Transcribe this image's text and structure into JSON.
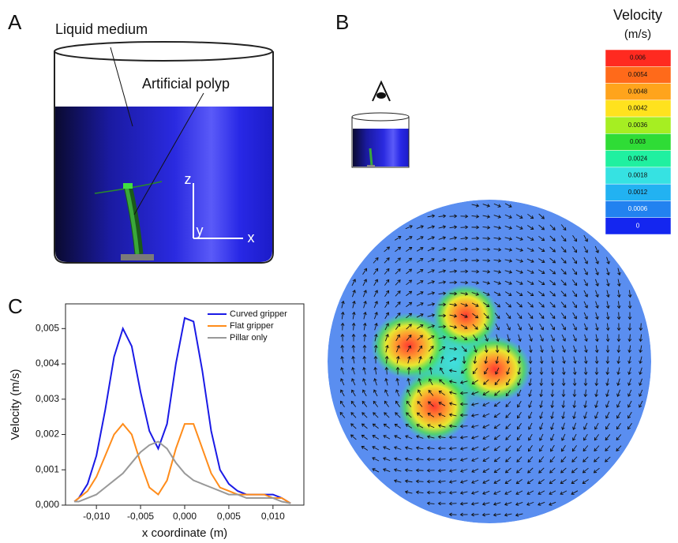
{
  "panel_a": {
    "label": "A",
    "liquid_label": "Liquid medium",
    "polyp_label": "Artificial polyp",
    "axis_z": "z",
    "axis_y": "y",
    "axis_x": "x"
  },
  "panel_b": {
    "label": "B",
    "colorbar": {
      "title": "Velocity",
      "unit": "(m/s)",
      "levels": [
        {
          "label": "0.006",
          "color": "#ff2a20"
        },
        {
          "label": "0.0054",
          "color": "#ff6a1a"
        },
        {
          "label": "0.0048",
          "color": "#ffa41c"
        },
        {
          "label": "0.0042",
          "color": "#ffe21e"
        },
        {
          "label": "0.0036",
          "color": "#a6ee22"
        },
        {
          "label": "0.003",
          "color": "#2fdc36"
        },
        {
          "label": "0.0024",
          "color": "#20f0a0"
        },
        {
          "label": "0.0018",
          "color": "#36e2e2"
        },
        {
          "label": "0.0012",
          "color": "#22b2f2"
        },
        {
          "label": "0.0006",
          "color": "#2282f0"
        },
        {
          "label": "0",
          "color": "#1426f0"
        }
      ]
    }
  },
  "chart_data": {
    "panel_label": "C",
    "type": "line",
    "x_label": "x coordinate (m)",
    "y_label": "Velocity (m/s)",
    "x": [
      -0.0125,
      -0.012,
      -0.011,
      -0.01,
      -0.009,
      -0.008,
      -0.007,
      -0.006,
      -0.005,
      -0.004,
      -0.003,
      -0.002,
      -0.001,
      0,
      0.001,
      0.002,
      0.003,
      0.004,
      0.005,
      0.006,
      0.007,
      0.008,
      0.009,
      0.01,
      0.011,
      0.012
    ],
    "series": [
      {
        "name": "Curved gripper",
        "color": "#1a1ae6",
        "values": [
          0.0001,
          0.0002,
          0.0006,
          0.0014,
          0.0027,
          0.0042,
          0.005,
          0.0045,
          0.0032,
          0.0021,
          0.0016,
          0.0023,
          0.004,
          0.0053,
          0.0052,
          0.0038,
          0.0021,
          0.001,
          0.0006,
          0.0004,
          0.0003,
          0.0003,
          0.0003,
          0.0003,
          0.0002,
          5e-05
        ]
      },
      {
        "name": "Flat gripper",
        "color": "#ff8c1a",
        "values": [
          0.0001,
          0.0002,
          0.0004,
          0.0008,
          0.0014,
          0.002,
          0.0023,
          0.002,
          0.0012,
          0.0005,
          0.0003,
          0.0007,
          0.0016,
          0.0023,
          0.0023,
          0.0016,
          0.0009,
          0.0005,
          0.0004,
          0.0003,
          0.0003,
          0.0003,
          0.0003,
          0.0002,
          0.0002,
          5e-05
        ]
      },
      {
        "name": "Pillar only",
        "color": "#999999",
        "values": [
          0.0001,
          0.0001,
          0.0002,
          0.0003,
          0.0005,
          0.0007,
          0.0009,
          0.0012,
          0.0015,
          0.0017,
          0.0018,
          0.0016,
          0.0012,
          0.0009,
          0.0007,
          0.0006,
          0.0005,
          0.0004,
          0.0003,
          0.0003,
          0.0002,
          0.0002,
          0.0002,
          0.0002,
          0.0001,
          5e-05
        ]
      }
    ],
    "xlim": [
      -0.0135,
      0.0135
    ],
    "ylim": [
      0,
      0.0057
    ],
    "xticks": [
      {
        "value": -0.01,
        "label": "-0,010"
      },
      {
        "value": -0.005,
        "label": "-0,005"
      },
      {
        "value": 0,
        "label": "0,000"
      },
      {
        "value": 0.005,
        "label": "0,005"
      },
      {
        "value": 0.01,
        "label": "0,010"
      }
    ],
    "yticks": [
      {
        "value": 0,
        "label": "0,000"
      },
      {
        "value": 0.001,
        "label": "0,001"
      },
      {
        "value": 0.002,
        "label": "0,002"
      },
      {
        "value": 0.003,
        "label": "0,003"
      },
      {
        "value": 0.004,
        "label": "0,004"
      },
      {
        "value": 0.005,
        "label": "0,005"
      }
    ],
    "legend": "upper right"
  }
}
